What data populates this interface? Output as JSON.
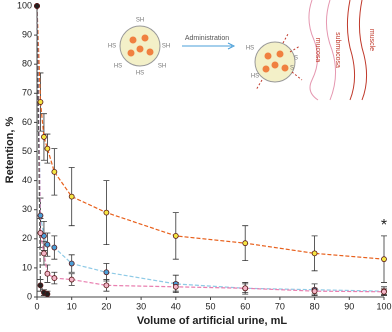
{
  "chart_data": {
    "type": "line",
    "x_label": "Volume of artificial urine, mL",
    "y_label": "Retention, %",
    "annotation": "*",
    "xlim": [
      0,
      100
    ],
    "xticks": [
      0,
      10,
      20,
      30,
      40,
      50,
      60,
      70,
      80,
      90,
      100
    ],
    "ylim": [
      0,
      100
    ],
    "yticks": [
      0,
      10,
      20,
      30,
      40,
      50,
      60,
      70,
      80,
      90,
      100
    ],
    "series": [
      {
        "color": "#f5e642",
        "line_color": "#e8601c",
        "x": [
          0,
          1,
          2,
          3,
          5,
          10,
          20,
          40,
          60,
          80,
          100
        ],
        "values": [
          100,
          67,
          55,
          51,
          43,
          34.5,
          29,
          21,
          18.5,
          15,
          13
        ],
        "errors": [
          null,
          10,
          8,
          5,
          8,
          10,
          11,
          8,
          6,
          6,
          8
        ]
      },
      {
        "color": "#4a9fd8",
        "line_color": "#8ecae6",
        "x": [
          0,
          1,
          2,
          3,
          5,
          10,
          20,
          40,
          60,
          80,
          100
        ],
        "values": [
          100,
          28,
          21,
          18,
          17,
          11.5,
          8.5,
          4.5,
          3,
          2.5,
          2
        ],
        "errors": [
          null,
          6,
          5,
          4,
          4,
          3,
          3,
          3,
          2,
          2,
          1.5
        ]
      },
      {
        "color": "#f4b6c8",
        "line_color": "#e97fb0",
        "x": [
          0,
          1,
          2,
          3,
          5,
          10,
          20,
          40,
          60,
          80,
          100
        ],
        "values": [
          100,
          22,
          15,
          8,
          6.5,
          6,
          4,
          3.5,
          3,
          2,
          1.8
        ],
        "errors": [
          null,
          5,
          4,
          3,
          2,
          2,
          2,
          1.5,
          1.5,
          1,
          1
        ]
      },
      {
        "color": "#222222",
        "line_color": "#555555",
        "x": [
          0,
          1,
          2,
          3
        ],
        "values": [
          100,
          4,
          1.5,
          1
        ],
        "errors": [
          null,
          2,
          1,
          1
        ]
      }
    ]
  },
  "inset": {
    "labels": [
      "SH",
      "SH",
      "HS",
      "HS",
      "HS",
      "SH",
      "Administration",
      "HS",
      "HS",
      "S",
      "S",
      "mucosa",
      "submucosa",
      "muscle"
    ]
  }
}
